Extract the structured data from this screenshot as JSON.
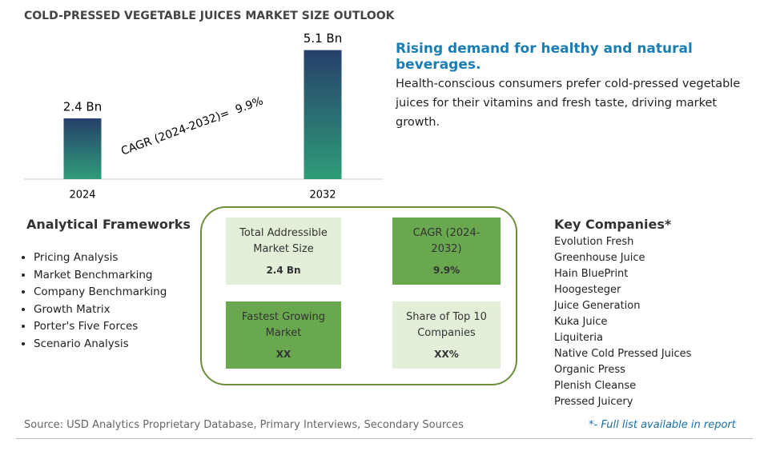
{
  "title": "COLD-PRESSED VEGETABLE JUICES MARKET SIZE OUTLOOK",
  "chart_data": {
    "type": "bar",
    "categories": [
      "2024",
      "2032"
    ],
    "values": [
      2.4,
      5.1
    ],
    "value_labels": [
      "2.4 Bn",
      "5.1 Bn"
    ],
    "ylim": [
      0,
      5.5
    ],
    "annotation": "CAGR (2024-2032)=  9.9%"
  },
  "headline": "Rising demand for healthy and natural beverages.",
  "description": "Health-conscious consumers prefer cold-pressed vegetable juices for their vitamins and fresh taste, driving market growth.",
  "frameworks": {
    "title": "Analytical Frameworks",
    "items": [
      "Pricing Analysis",
      "Market Benchmarking",
      "Company Benchmarking",
      "Growth Matrix",
      "Porter's Five Forces",
      "Scenario Analysis"
    ]
  },
  "metrics": [
    {
      "label": "Total Addressible Market Size",
      "value": "2.4 Bn"
    },
    {
      "label": "CAGR (2024-2032)",
      "value": "9.9%"
    },
    {
      "label": "Fastest Growing Market",
      "value": "XX"
    },
    {
      "label": "Share of Top 10 Companies",
      "value": "XX%"
    }
  ],
  "companies": {
    "title": "Key Companies*",
    "items": [
      "Evolution Fresh",
      "Greenhouse Juice",
      "Hain BluePrint",
      "Hoogesteger",
      "Juice Generation",
      "Kuka Juice",
      "Liquiteria",
      "Native Cold Pressed Juices",
      "Organic Press",
      "Plenish Cleanse",
      "Pressed Juicery"
    ]
  },
  "source": "Source: USD Analytics Proprietary Database, Primary Interviews, Secondary Sources",
  "footnote": "*- Full list available in report"
}
